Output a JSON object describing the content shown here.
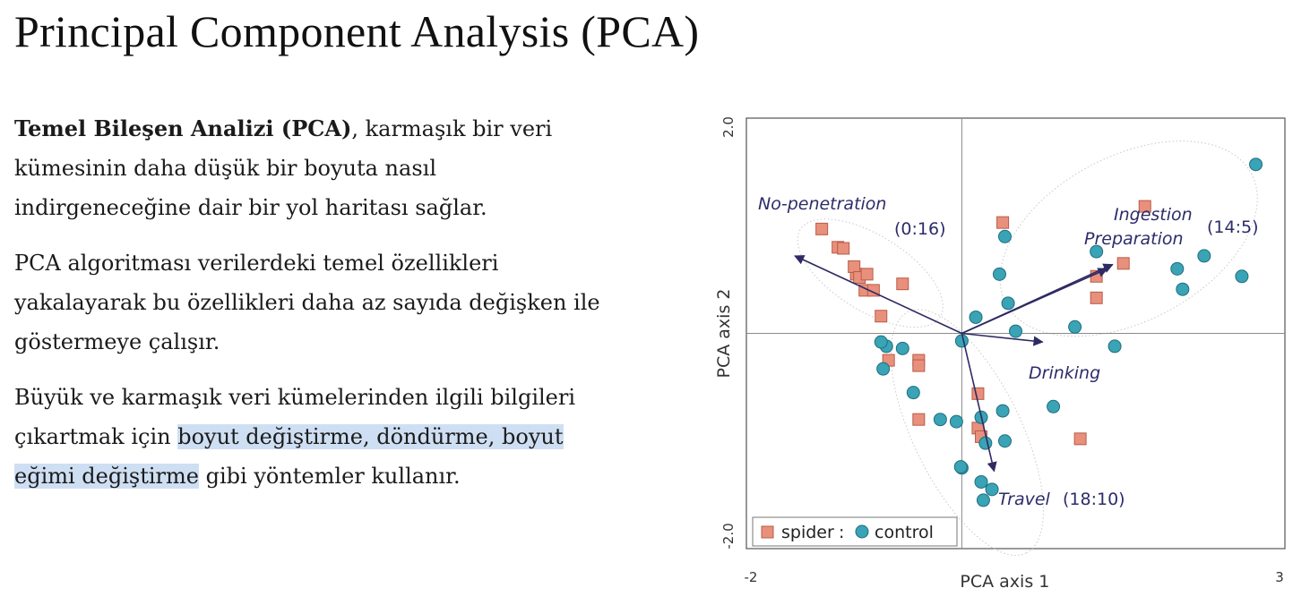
{
  "slide": {
    "title": "Principal Component Analysis (PCA)",
    "p1": {
      "bold": "Temel Bileşen Analizi (PCA)",
      "line1_rest": ", karmaşık bir veri",
      "line2": "kümesinin daha düşük bir boyuta nasıl",
      "line3": "indirgeneceğine dair bir yol haritası sağlar."
    },
    "p2": {
      "line1": "PCA algoritması verilerdeki temel özellikleri",
      "line2": "yakalayarak bu özellikleri daha az sayıda değişken ile",
      "line3": "göstermeye çalışır."
    },
    "p3": {
      "line1": "Büyük ve karmaşık veri kümelerinden ilgili bilgileri",
      "line2_plain": "çıkartmak için ",
      "line2_highlight": "boyut değiştirme, döndürme, boyut",
      "line3_highlight": "eğimi değiştirme",
      "line3_rest": " gibi yöntemler kullanır."
    },
    "highlight_color": "#cfdff3"
  },
  "chart_data": {
    "type": "scatter",
    "xlabel": "PCA axis 1",
    "ylabel": "PCA axis 2",
    "xlim": [
      -2,
      3
    ],
    "ylim": [
      -2.0,
      2.0
    ],
    "x_ticks": [
      "-2",
      "3"
    ],
    "y_ticks": [
      "2.0",
      "-2.0"
    ],
    "legend": {
      "spider": "spider",
      "separator": ":",
      "control": "control",
      "position": "bottom-left"
    },
    "colors": {
      "spider": "#e8907c",
      "control": "#3aa3b6",
      "arrow": "#2e2a63",
      "label": "#2c2c6a"
    },
    "series": [
      {
        "name": "spider",
        "marker": "square",
        "points": [
          [
            -1.3,
            0.97
          ],
          [
            -1.15,
            0.8
          ],
          [
            -1.1,
            0.79
          ],
          [
            -0.98,
            0.55
          ],
          [
            -1.0,
            0.62
          ],
          [
            -0.95,
            0.52
          ],
          [
            -0.88,
            0.55
          ],
          [
            -0.9,
            0.4
          ],
          [
            -0.82,
            0.4
          ],
          [
            -0.55,
            0.46
          ],
          [
            -0.75,
            0.16
          ],
          [
            -0.68,
            -0.25
          ],
          [
            -0.4,
            -0.25
          ],
          [
            -0.4,
            -0.3
          ],
          [
            -0.4,
            -0.8
          ],
          [
            0.15,
            -0.56
          ],
          [
            0.15,
            -0.88
          ],
          [
            0.38,
            1.03
          ],
          [
            1.7,
            1.18
          ],
          [
            1.25,
            0.53
          ],
          [
            1.5,
            0.65
          ],
          [
            1.25,
            0.33
          ],
          [
            1.1,
            -0.98
          ],
          [
            0.18,
            -0.96
          ]
        ]
      },
      {
        "name": "control",
        "marker": "circle",
        "points": [
          [
            2.73,
            1.57
          ],
          [
            2.25,
            0.72
          ],
          [
            2.0,
            0.6
          ],
          [
            2.6,
            0.53
          ],
          [
            2.05,
            0.41
          ],
          [
            1.25,
            0.76
          ],
          [
            0.4,
            0.9
          ],
          [
            0.35,
            0.55
          ],
          [
            0.43,
            0.28
          ],
          [
            0.13,
            0.15
          ],
          [
            0.0,
            -0.07
          ],
          [
            0.5,
            0.02
          ],
          [
            1.05,
            0.06
          ],
          [
            1.42,
            -0.12
          ],
          [
            -0.7,
            -0.12
          ],
          [
            -0.73,
            -0.33
          ],
          [
            -0.55,
            -0.14
          ],
          [
            -0.45,
            -0.55
          ],
          [
            -0.2,
            -0.8
          ],
          [
            -0.05,
            -0.82
          ],
          [
            0.18,
            -0.78
          ],
          [
            0.38,
            -0.72
          ],
          [
            0.85,
            -0.68
          ],
          [
            0.22,
            -1.02
          ],
          [
            0.4,
            -1.0
          ],
          [
            0.0,
            -1.25
          ],
          [
            0.18,
            -1.38
          ],
          [
            0.28,
            -1.45
          ],
          [
            0.2,
            -1.55
          ],
          [
            -0.75,
            -0.08
          ],
          [
            -0.01,
            -1.24
          ]
        ]
      }
    ],
    "vectors": [
      {
        "to": [
          -1.55,
          0.72
        ]
      },
      {
        "to": [
          1.4,
          0.64
        ]
      },
      {
        "to": [
          1.35,
          0.6
        ]
      },
      {
        "to": [
          0.75,
          -0.08
        ]
      },
      {
        "to": [
          0.3,
          -1.28
        ]
      }
    ],
    "group_labels": [
      {
        "text": "No-penetration",
        "italic": true
      },
      {
        "text": "(0:16)",
        "italic": false
      },
      {
        "text": "Ingestion",
        "italic": true
      },
      {
        "text": "Preparation",
        "italic": true
      },
      {
        "text": "(14:5)",
        "italic": false
      },
      {
        "text": "Drinking",
        "italic": true
      },
      {
        "text": "Travel",
        "italic": true
      },
      {
        "text": "(18:10)",
        "italic": false
      }
    ]
  }
}
